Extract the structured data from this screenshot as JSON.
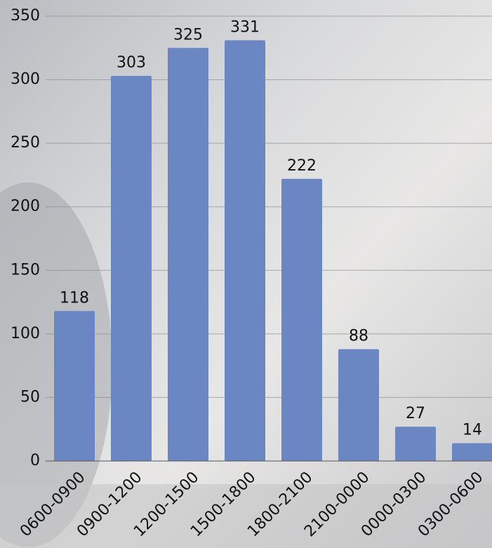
{
  "chart_data": {
    "type": "bar",
    "categories": [
      "0600-0900",
      "0900-1200",
      "1200-1500",
      "1500-1800",
      "1800-2100",
      "2100-0000",
      "0000-0300",
      "0300-0600"
    ],
    "values": [
      118,
      303,
      325,
      331,
      222,
      88,
      27,
      14
    ],
    "color": "#6b87c3",
    "ylim": [
      0,
      350
    ],
    "yticks": [
      0,
      50,
      100,
      150,
      200,
      250,
      300,
      350
    ],
    "grid": true
  }
}
